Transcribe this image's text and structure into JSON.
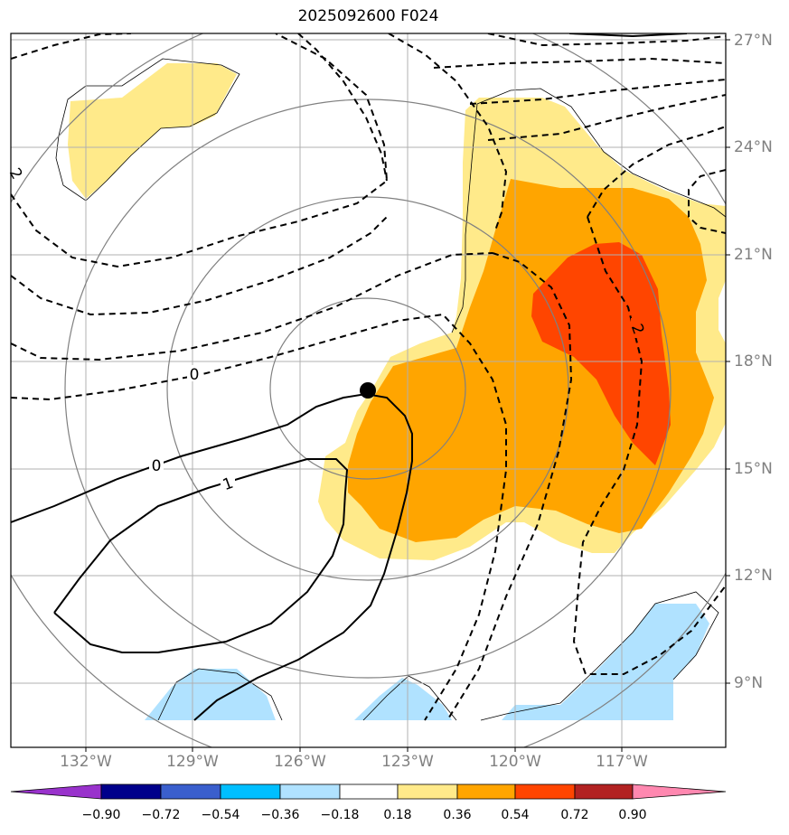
{
  "title": "2025092600 F024",
  "lat_labels": [
    "27°N",
    "24°N",
    "21°N",
    "18°N",
    "15°N",
    "12°N",
    "9°N"
  ],
  "lon_labels": [
    "132°W",
    "129°W",
    "126°W",
    "123°W",
    "120°W",
    "117°W"
  ],
  "contour_labels": {
    "zero_dashed": "0",
    "zero_solid": "0",
    "one_solid": "1",
    "two_left": "2",
    "two_right": "2"
  },
  "colorbar": {
    "ticks": [
      "−0.90",
      "−0.72",
      "−0.54",
      "−0.36",
      "−0.18",
      "0.18",
      "0.36",
      "0.54",
      "0.72",
      "0.90"
    ],
    "colors": [
      "#9932cc",
      "#00008b",
      "#3a5fcd",
      "#00bfff",
      "#b0e2ff",
      "#ffffff",
      "#ffea8a",
      "#ffa500",
      "#ff4500",
      "#b22222",
      "#ff88b0"
    ]
  },
  "fill_colors": {
    "light_yellow": "#ffea8a",
    "orange": "#ffa500",
    "red_orange": "#ff4500",
    "light_blue": "#b0e2ff"
  },
  "marker": {
    "type": "center-dot",
    "lat": 17.2,
    "lon": -124.2
  }
}
